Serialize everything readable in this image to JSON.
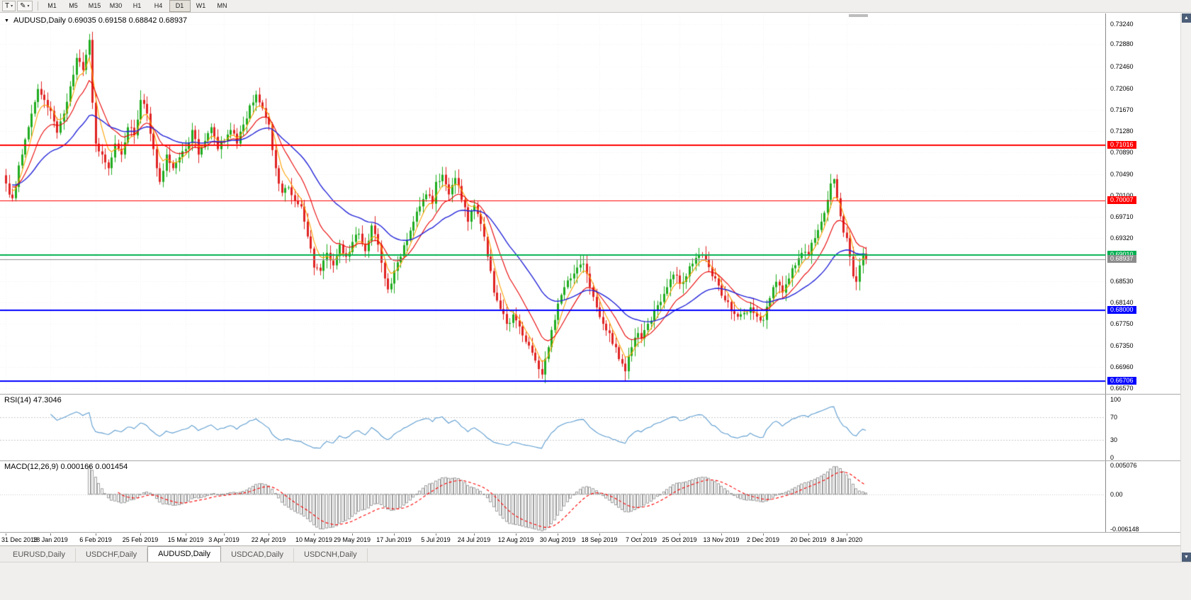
{
  "toolbar": {
    "text_tool_label": "T",
    "timeframes": [
      "M1",
      "M5",
      "M15",
      "M30",
      "H1",
      "H4",
      "D1",
      "W1",
      "MN"
    ],
    "active_timeframe": "D1"
  },
  "chart": {
    "header": "AUDUSD,Daily  0.69035 0.69158 0.68842 0.68937"
  },
  "price_axis_ticks": [
    "0.73240",
    "0.72880",
    "0.72460",
    "0.72060",
    "0.71670",
    "0.71280",
    "0.70890",
    "0.70490",
    "0.70100",
    "0.69710",
    "0.69320",
    "0.68930",
    "0.68530",
    "0.68140",
    "0.67750",
    "0.67350",
    "0.66960",
    "0.66570"
  ],
  "rsi_panel": {
    "label": "RSI(14) 47.3046",
    "ticks": [
      [
        "100",
        100
      ],
      [
        "70",
        70
      ],
      [
        "30",
        30
      ],
      [
        "0",
        0
      ]
    ],
    "levels": [
      70,
      30
    ]
  },
  "macd_panel": {
    "label": "MACD(12,26,9) 0.000166 0.001454",
    "ticks": [
      [
        "0.005076",
        0.005076
      ],
      [
        "0.00",
        0
      ],
      [
        "-0.006148",
        -0.006148
      ]
    ],
    "range": [
      -0.006148,
      0.005076
    ]
  },
  "date_axis": [
    [
      "31 Dec 2018",
      0
    ],
    [
      "18 Jan 2019",
      14
    ],
    [
      "6 Feb 2019",
      28
    ],
    [
      "25 Feb 2019",
      42
    ],
    [
      "15 Mar 2019",
      56
    ],
    [
      "3 Apr 2019",
      68
    ],
    [
      "22 Apr 2019",
      82
    ],
    [
      "10 May 2019",
      96
    ],
    [
      "29 May 2019",
      108
    ],
    [
      "17 Jun 2019",
      121
    ],
    [
      "5 Jul 2019",
      134
    ],
    [
      "24 Jul 2019",
      146
    ],
    [
      "12 Aug 2019",
      159
    ],
    [
      "30 Aug 2019",
      172
    ],
    [
      "18 Sep 2019",
      185
    ],
    [
      "7 Oct 2019",
      198
    ],
    [
      "25 Oct 2019",
      210
    ],
    [
      "13 Nov 2019",
      223
    ],
    [
      "2 Dec 2019",
      236
    ],
    [
      "20 Dec 2019",
      250
    ],
    [
      "8 Jan 2020",
      262
    ]
  ],
  "tabs": {
    "items": [
      "EURUSD,Daily",
      "USDCHF,Daily",
      "AUDUSD,Daily",
      "USDCAD,Daily",
      "USDCNH,Daily"
    ],
    "active": "AUDUSD,Daily"
  },
  "colors": {
    "bull": "#1FAC1F",
    "bear": "#E02222",
    "ma_fast": "#FFA000",
    "ma_mid": "#E80000",
    "ma_slow": "#2424D8",
    "rsi": "#5D9CCF",
    "macd_hist": "#9C9C9C",
    "macd_signal": "#FF0000",
    "grid": "#F0F0F0",
    "current_price": "#8C8C8C"
  },
  "chart_data": {
    "type": "candlestick",
    "symbol": "AUDUSD",
    "timeframe": "Daily",
    "last_bar": {
      "o": 0.69035,
      "h": 0.69158,
      "l": 0.68842,
      "c": 0.68937
    },
    "price_range": [
      0.6657,
      0.7324
    ],
    "bars_total": 269,
    "hlines": [
      {
        "price": 0.71016,
        "label": "0.71016",
        "color": "#FF0000",
        "width": 2
      },
      {
        "price": 0.70007,
        "label": "0.70007",
        "color": "#FF0000",
        "width": 1
      },
      {
        "price": 0.6901,
        "label": "0.69010",
        "color": "#00B050",
        "width": 2
      },
      {
        "price": 0.68937,
        "label": "0.68937",
        "color": "#8C8C8C",
        "width": 1
      },
      {
        "price": 0.68,
        "label": "0.68000",
        "color": "#0000FF",
        "width": 2
      },
      {
        "price": 0.66706,
        "label": "0.66706",
        "color": "#0000FF",
        "width": 2
      }
    ],
    "moving_averages": [
      {
        "period": 5,
        "color_key": "ma_fast"
      },
      {
        "period": 13,
        "color_key": "ma_mid"
      },
      {
        "period": 34,
        "color_key": "ma_slow"
      }
    ],
    "rsi": {
      "period": 14,
      "value": "47.3046"
    },
    "macd": {
      "fast": 12,
      "slow": 26,
      "signal_period": 9,
      "main": "0.000166",
      "signal": "0.001454"
    },
    "close_waypoints": [
      [
        0,
        0.7032
      ],
      [
        2,
        0.7005
      ],
      [
        5,
        0.7085
      ],
      [
        8,
        0.716
      ],
      [
        10,
        0.7205
      ],
      [
        12,
        0.7185
      ],
      [
        14,
        0.7165
      ],
      [
        16,
        0.7125
      ],
      [
        18,
        0.716
      ],
      [
        20,
        0.721
      ],
      [
        22,
        0.7262
      ],
      [
        24,
        0.724
      ],
      [
        26,
        0.7295
      ],
      [
        27,
        0.718
      ],
      [
        28,
        0.7105
      ],
      [
        30,
        0.7085
      ],
      [
        32,
        0.706
      ],
      [
        34,
        0.7105
      ],
      [
        36,
        0.7085
      ],
      [
        38,
        0.7135
      ],
      [
        40,
        0.712
      ],
      [
        42,
        0.7185
      ],
      [
        44,
        0.716
      ],
      [
        46,
        0.7095
      ],
      [
        48,
        0.7035
      ],
      [
        50,
        0.7085
      ],
      [
        52,
        0.706
      ],
      [
        54,
        0.708
      ],
      [
        56,
        0.7095
      ],
      [
        58,
        0.713
      ],
      [
        60,
        0.7085
      ],
      [
        62,
        0.711
      ],
      [
        64,
        0.7135
      ],
      [
        66,
        0.7095
      ],
      [
        68,
        0.711
      ],
      [
        70,
        0.713
      ],
      [
        72,
        0.7105
      ],
      [
        74,
        0.714
      ],
      [
        76,
        0.7175
      ],
      [
        78,
        0.7195
      ],
      [
        80,
        0.717
      ],
      [
        82,
        0.714
      ],
      [
        84,
        0.706
      ],
      [
        86,
        0.7015
      ],
      [
        88,
        0.7025
      ],
      [
        90,
        0.7
      ],
      [
        92,
        0.699
      ],
      [
        94,
        0.6935
      ],
      [
        96,
        0.6878
      ],
      [
        98,
        0.6872
      ],
      [
        100,
        0.6905
      ],
      [
        102,
        0.6882
      ],
      [
        104,
        0.692
      ],
      [
        106,
        0.6898
      ],
      [
        108,
        0.6925
      ],
      [
        110,
        0.694
      ],
      [
        112,
        0.6908
      ],
      [
        114,
        0.6955
      ],
      [
        116,
        0.692
      ],
      [
        118,
        0.6858
      ],
      [
        119,
        0.6838
      ],
      [
        121,
        0.6872
      ],
      [
        123,
        0.6898
      ],
      [
        125,
        0.6928
      ],
      [
        127,
        0.6962
      ],
      [
        129,
        0.699
      ],
      [
        131,
        0.7012
      ],
      [
        133,
        0.6995
      ],
      [
        134,
        0.7035
      ],
      [
        136,
        0.7048
      ],
      [
        138,
        0.7012
      ],
      [
        140,
        0.7042
      ],
      [
        142,
        0.7002
      ],
      [
        144,
        0.6962
      ],
      [
        146,
        0.6992
      ],
      [
        148,
        0.6958
      ],
      [
        150,
        0.6898
      ],
      [
        152,
        0.6832
      ],
      [
        154,
        0.6802
      ],
      [
        156,
        0.6775
      ],
      [
        158,
        0.6792
      ],
      [
        160,
        0.677
      ],
      [
        162,
        0.6742
      ],
      [
        164,
        0.6722
      ],
      [
        166,
        0.6692
      ],
      [
        167,
        0.6682
      ],
      [
        169,
        0.6732
      ],
      [
        171,
        0.6782
      ],
      [
        172,
        0.6812
      ],
      [
        174,
        0.6842
      ],
      [
        176,
        0.6858
      ],
      [
        178,
        0.6878
      ],
      [
        180,
        0.6885
      ],
      [
        182,
        0.6842
      ],
      [
        184,
        0.6805
      ],
      [
        186,
        0.6775
      ],
      [
        188,
        0.6758
      ],
      [
        190,
        0.6732
      ],
      [
        192,
        0.6702
      ],
      [
        193,
        0.6688
      ],
      [
        195,
        0.6732
      ],
      [
        197,
        0.6758
      ],
      [
        198,
        0.6748
      ],
      [
        200,
        0.6775
      ],
      [
        202,
        0.68
      ],
      [
        204,
        0.6815
      ],
      [
        206,
        0.6842
      ],
      [
        208,
        0.6865
      ],
      [
        210,
        0.6848
      ],
      [
        212,
        0.6862
      ],
      [
        214,
        0.6885
      ],
      [
        216,
        0.6902
      ],
      [
        218,
        0.6892
      ],
      [
        220,
        0.6862
      ],
      [
        222,
        0.6845
      ],
      [
        224,
        0.6818
      ],
      [
        226,
        0.6798
      ],
      [
        228,
        0.6788
      ],
      [
        230,
        0.6795
      ],
      [
        232,
        0.6805
      ],
      [
        234,
        0.6788
      ],
      [
        236,
        0.6782
      ],
      [
        238,
        0.6822
      ],
      [
        240,
        0.6852
      ],
      [
        242,
        0.6832
      ],
      [
        244,
        0.6858
      ],
      [
        246,
        0.6882
      ],
      [
        248,
        0.6905
      ],
      [
        250,
        0.6902
      ],
      [
        252,
        0.6932
      ],
      [
        254,
        0.6962
      ],
      [
        256,
        0.7002
      ],
      [
        257,
        0.7032
      ],
      [
        258,
        0.704
      ],
      [
        259,
        0.7005
      ],
      [
        260,
        0.6972
      ],
      [
        261,
        0.6942
      ],
      [
        262,
        0.6932
      ],
      [
        263,
        0.6898
      ],
      [
        264,
        0.6862
      ],
      [
        265,
        0.6852
      ],
      [
        266,
        0.6882
      ],
      [
        267,
        0.6904
      ],
      [
        268,
        0.68937
      ]
    ],
    "wick_overrides": [
      [
        2,
        "l",
        0.6999
      ],
      [
        27,
        "h",
        0.731
      ],
      [
        96,
        "l",
        0.6864
      ],
      [
        119,
        "l",
        0.6831
      ],
      [
        167,
        "l",
        0.6674
      ],
      [
        193,
        "l",
        0.6671
      ],
      [
        258,
        "h",
        0.7041
      ]
    ]
  }
}
